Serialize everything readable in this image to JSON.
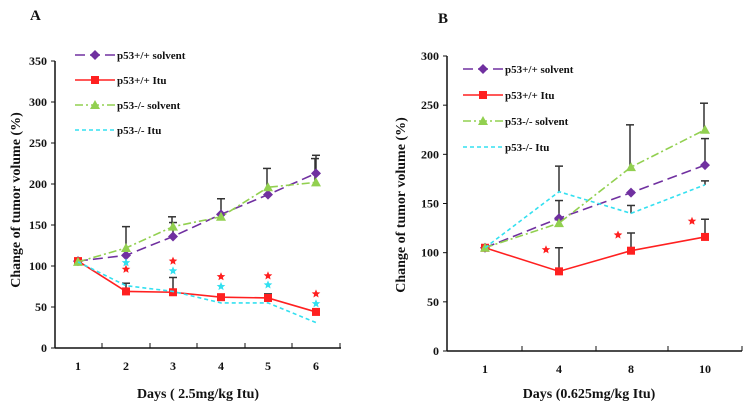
{
  "chart_data": [
    {
      "type": "line",
      "panel": "A",
      "xlabel": "Days ( 2.5mg/kg Itu)",
      "ylabel": "Change of  tumor volume (%)",
      "ylim": [
        0,
        350
      ],
      "yticks": [
        0,
        50,
        100,
        150,
        200,
        250,
        300,
        350
      ],
      "categories": [
        "1",
        "2",
        "3",
        "4",
        "5",
        "6"
      ],
      "series": [
        {
          "name": "p53+/+ solvent",
          "color": "#7030a0",
          "dash": "10,5",
          "marker": "diamond",
          "values": [
            106,
            113,
            136,
            163,
            187,
            213
          ],
          "err_upper": [
            null,
            148,
            153,
            182,
            null,
            235
          ]
        },
        {
          "name": "p53+/+ Itu",
          "color": "#ff2020",
          "dash": "",
          "marker": "square",
          "values": [
            106,
            69,
            68,
            62,
            61,
            44
          ],
          "err_upper": [
            null,
            79,
            86,
            null,
            66,
            null
          ]
        },
        {
          "name": "p53-/- solvent",
          "color": "#92d050",
          "dash": "8,3,2,3",
          "marker": "triangle",
          "values": [
            105,
            122,
            148,
            160,
            196,
            202
          ],
          "err_upper": [
            null,
            null,
            160,
            null,
            219,
            231
          ]
        },
        {
          "name": "p53-/- Itu",
          "color": "#33e0f0",
          "dash": "4,3",
          "marker": "none",
          "values": [
            105,
            76,
            69,
            55,
            55,
            31
          ],
          "err_upper": [
            null,
            null,
            null,
            null,
            null,
            null
          ]
        }
      ],
      "stars": [
        {
          "color": "#ff2020",
          "values": [
            null,
            96,
            106,
            87,
            88,
            66
          ]
        },
        {
          "color": "#33e0f0",
          "values": [
            null,
            104,
            94,
            75,
            77,
            54
          ]
        }
      ]
    },
    {
      "type": "line",
      "panel": "B",
      "xlabel": "Days (0.625mg/kg Itu)",
      "ylabel": "Change of  tumor volume (%)",
      "ylim": [
        0,
        300
      ],
      "yticks": [
        0,
        50,
        100,
        150,
        200,
        250,
        300
      ],
      "categories": [
        "1",
        "4",
        "8",
        "10"
      ],
      "series": [
        {
          "name": "p53+/+ solvent",
          "color": "#7030a0",
          "dash": "10,5",
          "marker": "diamond",
          "values": [
            105,
            135,
            161,
            189
          ],
          "err_upper": [
            null,
            153,
            null,
            216
          ]
        },
        {
          "name": "p53+/+ Itu",
          "color": "#ff2020",
          "dash": "",
          "marker": "square",
          "values": [
            105,
            81,
            102,
            116
          ],
          "err_upper": [
            null,
            105,
            120,
            134
          ]
        },
        {
          "name": "p53-/- solvent",
          "color": "#92d050",
          "dash": "8,3,2,3",
          "marker": "triangle",
          "values": [
            105,
            130,
            187,
            225
          ],
          "err_upper": [
            null,
            null,
            230,
            252
          ]
        },
        {
          "name": "p53-/- Itu",
          "color": "#33e0f0",
          "dash": "4,3",
          "marker": "none",
          "values": [
            105,
            162,
            140,
            169
          ],
          "err_upper": [
            null,
            188,
            148,
            173
          ]
        }
      ],
      "stars": [
        {
          "color": "#ff2020",
          "values": [
            null,
            103,
            118,
            132
          ]
        }
      ]
    }
  ]
}
